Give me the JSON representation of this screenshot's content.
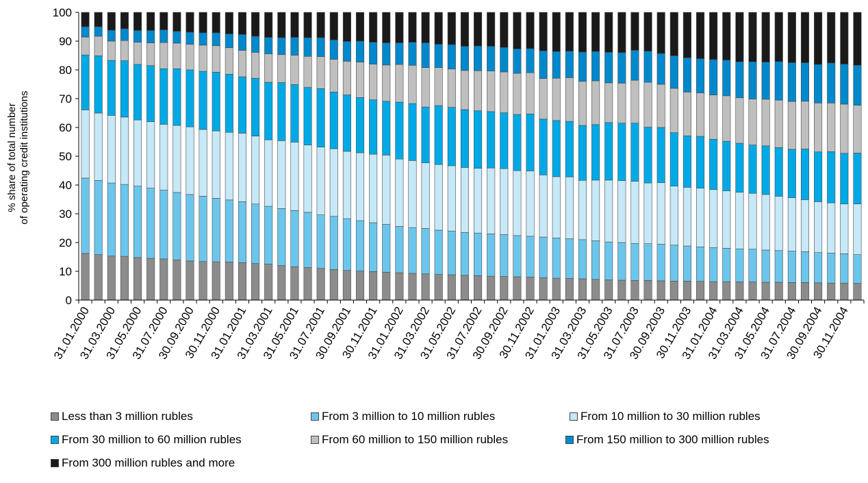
{
  "chart_data": {
    "type": "bar",
    "stacked": true,
    "title": "",
    "ylabel_lines": [
      "% share of total number",
      "of operating credit institutions"
    ],
    "ylim": [
      0,
      100
    ],
    "yticks": [
      0,
      10,
      20,
      30,
      40,
      50,
      60,
      70,
      80,
      90,
      100
    ],
    "grid": false,
    "legend_position": "bottom",
    "categories": [
      "31.01.2000",
      "29.02.2000",
      "31.03.2000",
      "30.04.2000",
      "31.05.2000",
      "30.06.2000",
      "31.07.2000",
      "31.08.2000",
      "30.09.2000",
      "31.10.2000",
      "30.11.2000",
      "31.12.2000",
      "31.01.2001",
      "28.02.2001",
      "31.03.2001",
      "30.04.2001",
      "31.05.2001",
      "30.06.2001",
      "31.07.2001",
      "31.08.2001",
      "30.09.2001",
      "31.10.2001",
      "30.11.2001",
      "31.12.2001",
      "31.01.2002",
      "28.02.2002",
      "31.03.2002",
      "30.04.2002",
      "31.05.2002",
      "30.06.2002",
      "31.07.2002",
      "31.08.2002",
      "30.09.2002",
      "31.10.2002",
      "30.11.2002",
      "31.12.2002",
      "31.01.2003",
      "28.02.2003",
      "31.03.2003",
      "30.04.2003",
      "31.05.2003",
      "30.06.2003",
      "31.07.2003",
      "31.08.2003",
      "30.09.2003",
      "31.10.2003",
      "30.11.2003",
      "31.12.2003",
      "31.01.2004",
      "29.02.2004",
      "31.03.2004",
      "30.04.2004",
      "31.05.2004",
      "30.06.2004",
      "31.07.2004",
      "31.08.2004",
      "30.09.2004",
      "31.10.2004",
      "30.11.2004",
      "31.12.2004"
    ],
    "x_tick_labels": [
      "31.01.2000",
      "31.03.2000",
      "31.05.2000",
      "31.07.2000",
      "30.09.2000",
      "30.11.2000",
      "31.01.2001",
      "31.03.2001",
      "31.05.2001",
      "31.07.2001",
      "30.09.2001",
      "30.11.2001",
      "31.01.2002",
      "31.03.2002",
      "31.05.2002",
      "31.07.2002",
      "30.09.2002",
      "30.11.2002",
      "31.01.2003",
      "31.03.2003",
      "31.05.2003",
      "31.07.2003",
      "30.09.2003",
      "30.11.2003",
      "31.01.2004",
      "31.03.2004",
      "31.05.2004",
      "31.07.2004",
      "30.09.2004",
      "30.11.2004"
    ],
    "series": [
      {
        "name": "Less than 3 million rubles",
        "color": "#8c8c8c",
        "values": [
          16.2,
          15.8,
          15.3,
          15.2,
          14.8,
          14.5,
          14.3,
          14.0,
          13.6,
          13.4,
          13.3,
          13.2,
          13.0,
          12.7,
          12.5,
          12.0,
          11.6,
          11.3,
          11.0,
          10.6,
          10.3,
          10.1,
          9.9,
          9.7,
          9.5,
          9.3,
          9.1,
          8.9,
          8.8,
          8.6,
          8.5,
          8.3,
          8.2,
          8.1,
          8.0,
          7.8,
          7.6,
          7.5,
          7.4,
          7.2,
          7.0,
          6.9,
          6.8,
          6.8,
          6.7,
          6.6,
          6.6,
          6.5,
          6.4,
          6.4,
          6.3,
          6.3,
          6.2,
          6.2,
          6.1,
          6.1,
          6.0,
          5.9,
          5.9,
          5.8
        ]
      },
      {
        "name": "From 3 million to 10 million rubles",
        "color": "#6cc6ec",
        "values": [
          26.2,
          25.8,
          25.4,
          25.0,
          24.8,
          24.4,
          23.9,
          23.4,
          23.1,
          22.7,
          22.1,
          21.6,
          21.2,
          20.7,
          20.1,
          19.8,
          19.5,
          19.2,
          18.6,
          18.5,
          18.0,
          17.5,
          17.0,
          16.6,
          16.1,
          15.9,
          15.8,
          15.4,
          15.2,
          14.9,
          14.8,
          14.7,
          14.6,
          14.3,
          14.2,
          14.1,
          14.0,
          13.8,
          13.6,
          13.4,
          13.2,
          13.1,
          12.9,
          12.8,
          12.7,
          12.5,
          12.2,
          12.0,
          11.8,
          11.6,
          11.5,
          11.4,
          11.2,
          11.0,
          10.9,
          10.7,
          10.5,
          10.4,
          10.2,
          10.0
        ]
      },
      {
        "name": "From 10 million to 30 million rubles",
        "color": "#c6e8f7",
        "values": [
          23.7,
          23.4,
          23.5,
          23.4,
          23.0,
          23.1,
          22.9,
          23.3,
          23.5,
          23.2,
          23.4,
          23.5,
          23.8,
          23.6,
          23.1,
          23.6,
          23.8,
          23.4,
          23.6,
          23.5,
          23.4,
          23.6,
          23.8,
          24.1,
          23.4,
          23.3,
          22.8,
          22.8,
          22.7,
          22.6,
          22.5,
          22.9,
          22.9,
          22.6,
          22.7,
          21.6,
          21.3,
          21.5,
          20.6,
          21.1,
          21.5,
          21.5,
          21.6,
          21.1,
          21.4,
          20.5,
          20.4,
          20.4,
          20.2,
          20.0,
          19.7,
          19.4,
          19.3,
          18.9,
          18.6,
          18.1,
          17.7,
          17.5,
          17.3,
          17.6
        ]
      },
      {
        "name": "From 30 million to 60 million rubles",
        "color": "#00a9e6",
        "values": [
          19.1,
          19.9,
          19.1,
          19.6,
          19.3,
          19.5,
          19.3,
          19.7,
          19.8,
          20.2,
          20.4,
          20.2,
          19.6,
          20.1,
          20.0,
          20.2,
          20.0,
          20.0,
          20.3,
          19.7,
          19.6,
          19.2,
          18.9,
          18.7,
          19.8,
          19.8,
          19.4,
          20.5,
          20.3,
          20.1,
          20.0,
          19.6,
          19.4,
          19.5,
          19.8,
          19.4,
          19.5,
          19.3,
          19.1,
          19.3,
          20.0,
          20.0,
          20.2,
          19.4,
          19.2,
          18.6,
          17.9,
          18.0,
          17.5,
          17.2,
          17.0,
          16.8,
          16.9,
          16.9,
          16.8,
          17.6,
          17.3,
          17.8,
          17.6,
          17.7
        ]
      },
      {
        "name": "From 60 million to 150 million rubles",
        "color": "#bfbfbf",
        "values": [
          6.2,
          6.8,
          6.7,
          7.0,
          7.7,
          7.9,
          9.1,
          8.9,
          8.9,
          9.1,
          9.2,
          9.2,
          9.2,
          9.0,
          9.9,
          9.7,
          10.2,
          10.8,
          11.1,
          11.4,
          11.7,
          12.3,
          12.4,
          12.6,
          13.1,
          13.3,
          13.7,
          13.2,
          13.3,
          13.6,
          13.9,
          14.1,
          14.2,
          14.3,
          14.3,
          14.1,
          14.7,
          15.2,
          15.3,
          15.2,
          13.8,
          13.9,
          14.9,
          15.6,
          15.0,
          15.4,
          15.2,
          15.1,
          15.4,
          15.8,
          15.8,
          16.0,
          16.2,
          16.5,
          16.6,
          16.6,
          17.0,
          16.9,
          17.1,
          16.6
        ]
      },
      {
        "name": "From 150 million to 300 million rubles",
        "color": "#0088cc",
        "values": [
          3.6,
          3.3,
          3.8,
          4.1,
          4.1,
          4.3,
          4.4,
          4.1,
          4.2,
          4.3,
          4.5,
          4.8,
          5.5,
          5.6,
          5.7,
          5.9,
          6.2,
          6.5,
          6.6,
          6.7,
          6.9,
          7.3,
          7.6,
          7.7,
          7.5,
          8.0,
          8.6,
          8.1,
          8.5,
          8.4,
          8.6,
          8.6,
          8.5,
          8.5,
          8.4,
          9.6,
          9.3,
          9.2,
          10.2,
          10.2,
          10.6,
          10.6,
          10.4,
          10.8,
          10.7,
          11.3,
          11.9,
          11.9,
          12.3,
          12.4,
          12.5,
          12.9,
          12.9,
          13.4,
          13.5,
          13.4,
          13.4,
          13.9,
          13.9,
          13.9
        ]
      },
      {
        "name": "From 300 million rubles and more",
        "color": "#1a1a1a",
        "values": [
          5.0,
          5.0,
          6.2,
          5.7,
          6.3,
          6.3,
          6.1,
          6.6,
          6.9,
          7.1,
          7.1,
          7.5,
          7.7,
          8.3,
          8.7,
          8.8,
          8.7,
          8.8,
          8.8,
          9.6,
          10.1,
          10.0,
          10.4,
          10.6,
          10.6,
          10.4,
          10.6,
          11.1,
          11.2,
          11.8,
          11.7,
          11.8,
          12.2,
          12.7,
          12.6,
          13.4,
          13.6,
          13.5,
          13.8,
          13.6,
          13.9,
          14.0,
          13.2,
          13.5,
          14.3,
          15.1,
          15.8,
          16.1,
          16.4,
          16.6,
          17.2,
          17.2,
          17.3,
          17.1,
          17.5,
          17.5,
          18.1,
          17.6,
          18.0,
          18.4
        ]
      }
    ]
  }
}
